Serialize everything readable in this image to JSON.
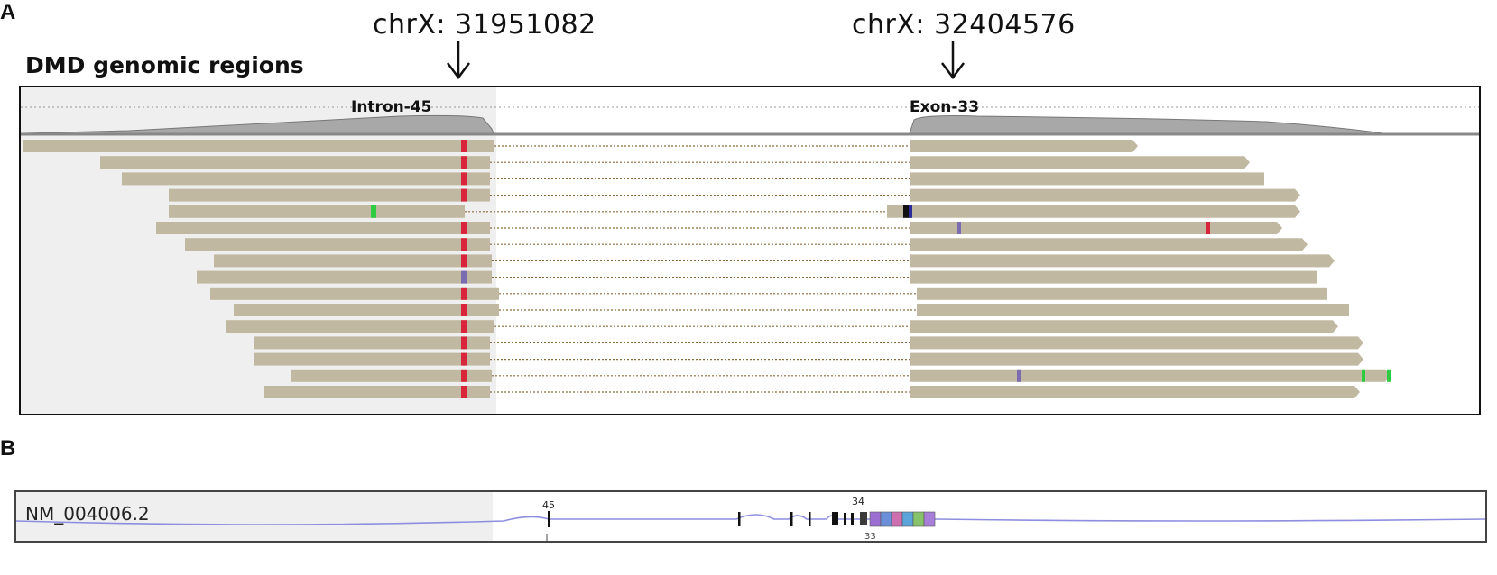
{
  "panel_a": {
    "letter": "A",
    "title": "DMD genomic regions",
    "breakpoint_left": "chrX: 31951082",
    "breakpoint_right": "chrX: 32404576",
    "region_left_label": "Intron-45",
    "region_right_label": "Exon-33",
    "read_color": "#c0b8a0",
    "mismatch_red": "#d9253c",
    "mismatch_green": "#2ecc40",
    "mismatch_purple": "#7b6bb0",
    "split_line_color": "#8a6a3a",
    "coverage_color": "#a8a8a8"
  },
  "panel_b": {
    "letter": "B",
    "transcript": "NM_004006.2",
    "exon_labels": {
      "left": "45",
      "top": "34",
      "bottom": "33"
    },
    "line_color": "#8e8ee0"
  }
}
